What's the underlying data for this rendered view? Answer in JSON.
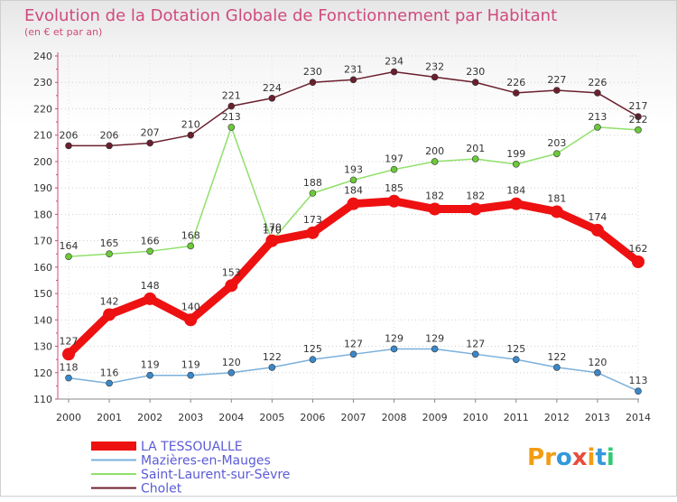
{
  "chart_data": {
    "type": "line",
    "title": "Evolution de la Dotation Globale de Fonctionnement par Habitant",
    "subtitle": "(en € et par an)",
    "xlabel": "",
    "ylabel": "",
    "ylim": [
      110,
      240
    ],
    "y_ticks": [
      110,
      120,
      130,
      140,
      150,
      160,
      170,
      180,
      190,
      200,
      210,
      220,
      230,
      240
    ],
    "x": [
      "2000",
      "2001",
      "2002",
      "2003",
      "2004",
      "2005",
      "2006",
      "2007",
      "2008",
      "2009",
      "2010",
      "2011",
      "2012",
      "2013",
      "2014"
    ],
    "series": [
      {
        "name": "Cholet",
        "color": "#6b1f2e",
        "dot": "#6b1f2e",
        "values": [
          206,
          206,
          207,
          210,
          221,
          224,
          230,
          231,
          234,
          232,
          230,
          226,
          227,
          226,
          217
        ]
      },
      {
        "name": "Saint-Laurent-sur-Sèvre",
        "color": "#8fe06a",
        "dot": "#6cc93a",
        "values": [
          164,
          165,
          166,
          168,
          213,
          170,
          188,
          193,
          197,
          200,
          201,
          199,
          203,
          213,
          212
        ]
      },
      {
        "name": "Mazières-en-Mauges",
        "color": "#7ab0dc",
        "dot": "#3b88c9",
        "values": [
          118,
          116,
          119,
          119,
          120,
          122,
          125,
          127,
          129,
          129,
          127,
          125,
          122,
          120,
          113
        ]
      },
      {
        "name": "LA TESSOUALLE",
        "color": "#ee1111",
        "dot": "#ee1111",
        "values": [
          127,
          142,
          148,
          140,
          153,
          170,
          173,
          184,
          185,
          182,
          182,
          184,
          181,
          174,
          162
        ]
      }
    ],
    "legend": [
      {
        "name": "LA TESSOUALLE",
        "color": "#ee1111",
        "thick": true
      },
      {
        "name": "Mazières-en-Mauges",
        "color": "#7ab0dc",
        "thick": false
      },
      {
        "name": "Saint-Laurent-sur-Sèvre",
        "color": "#8fe06a",
        "thick": false
      },
      {
        "name": "Cholet",
        "color": "#6b1f2e",
        "thick": false
      }
    ],
    "legend_position": "bottom-left"
  },
  "logo": {
    "text": "Proxiti",
    "colors": [
      "#f39c12",
      "#f39c12",
      "#3498db",
      "#e74c3c",
      "#f39c12",
      "#3498db",
      "#2ecc71"
    ]
  }
}
